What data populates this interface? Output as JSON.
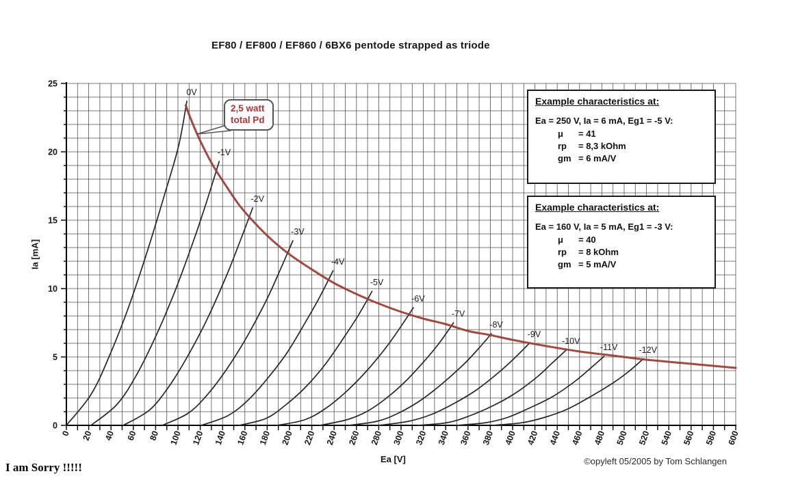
{
  "title": "EF80 / EF800 / EF860 / 6BX6 pentode strapped as triode",
  "footer": {
    "sorry_note": "I am Sorry !!!!!",
    "credit": "©opyleft 05/2005 by Tom Schlangen"
  },
  "callout": {
    "line1": "2,5 watt",
    "line2": "total Pd"
  },
  "example_boxes": [
    {
      "heading": "Example characteristics at:",
      "condition": "Ea = 250 V, Ia = 6 mA, Eg1 = -5 V:",
      "rows": [
        {
          "label": "μ",
          "value": "= 41"
        },
        {
          "label": "rp",
          "value": "= 8,3 kOhm"
        },
        {
          "label": "gm",
          "value": "= 6 mA/V"
        }
      ]
    },
    {
      "heading": "Example characteristics at:",
      "condition": "Ea = 160 V, Ia = 5 mA, Eg1 = -3 V:",
      "rows": [
        {
          "label": "μ",
          "value": "= 40"
        },
        {
          "label": "rp",
          "value": "= 8 kOhm"
        },
        {
          "label": "gm",
          "value": "= 5 mA/V"
        }
      ]
    }
  ],
  "chart_data": {
    "type": "line",
    "title": "EF80 / EF800 / EF860 / 6BX6 pentode strapped as triode",
    "xlabel": "Ea [V]",
    "ylabel": "Ia [mA]",
    "xlim": [
      0,
      600
    ],
    "ylim": [
      0,
      25
    ],
    "x_tick_step": 20,
    "x_grid_step": 10,
    "y_tick_step": 5,
    "y_grid_step": 1,
    "grid": true,
    "grid_color": "#3f3f3f",
    "curve_color": "#262626",
    "pd_color": "#9b3a32",
    "callout_text_color": "#b03434",
    "legend_position": "none",
    "series": [
      {
        "name": "0V",
        "vg": 0,
        "points": [
          [
            0,
            0
          ],
          [
            22.4,
            2.3
          ],
          [
            39.2,
            5.2
          ],
          [
            56,
            8.7
          ],
          [
            72.8,
            12.8
          ],
          [
            89.6,
            17.3
          ],
          [
            100.8,
            20.5
          ],
          [
            108,
            23.7
          ]
        ]
      },
      {
        "name": "-1V",
        "vg": -1,
        "points": [
          [
            22,
            0
          ],
          [
            45,
            1.5
          ],
          [
            62.3,
            3.6
          ],
          [
            79.5,
            6.4
          ],
          [
            96.8,
            9.7
          ],
          [
            114,
            13.5
          ],
          [
            125.5,
            16.3
          ],
          [
            137,
            19.3
          ]
        ]
      },
      {
        "name": "-2V",
        "vg": -2,
        "points": [
          [
            51,
            0
          ],
          [
            74.2,
            1.1
          ],
          [
            91.6,
            2.8
          ],
          [
            109,
            5.1
          ],
          [
            126.4,
            7.8
          ],
          [
            143.8,
            11.0
          ],
          [
            155.4,
            13.4
          ],
          [
            167,
            15.9
          ]
        ]
      },
      {
        "name": "-3V",
        "vg": -3,
        "points": [
          [
            86,
            0
          ],
          [
            109.4,
            0.9
          ],
          [
            127,
            2.3
          ],
          [
            144.5,
            4.2
          ],
          [
            162,
            6.5
          ],
          [
            179.6,
            9.2
          ],
          [
            191.3,
            11.3
          ],
          [
            203,
            13.5
          ]
        ]
      },
      {
        "name": "-4V",
        "vg": -4,
        "points": [
          [
            121,
            0
          ],
          [
            144.6,
            0.7
          ],
          [
            162.3,
            1.8
          ],
          [
            180,
            3.4
          ],
          [
            197.7,
            5.3
          ],
          [
            215.4,
            7.7
          ],
          [
            227.2,
            9.4
          ],
          [
            239,
            11.3
          ]
        ]
      },
      {
        "name": "-5V",
        "vg": -5,
        "points": [
          [
            155,
            0
          ],
          [
            178.8,
            0.5
          ],
          [
            196.7,
            1.5
          ],
          [
            214.5,
            2.8
          ],
          [
            232.4,
            4.5
          ],
          [
            250.2,
            6.6
          ],
          [
            262.1,
            8.1
          ],
          [
            274,
            9.8
          ]
        ]
      },
      {
        "name": "-6V",
        "vg": -6,
        "points": [
          [
            189,
            0
          ],
          [
            213.4,
            0.4
          ],
          [
            231.7,
            1.2
          ],
          [
            250,
            2.4
          ],
          [
            268.3,
            3.9
          ],
          [
            286.6,
            5.7
          ],
          [
            298.8,
            7.1
          ],
          [
            311,
            8.6
          ]
        ]
      },
      {
        "name": "-7V",
        "vg": -7,
        "points": [
          [
            227,
            0
          ],
          [
            251,
            0.4
          ],
          [
            269,
            1.0
          ],
          [
            287,
            2.0
          ],
          [
            305,
            3.3
          ],
          [
            323,
            4.9
          ],
          [
            335,
            6.1
          ],
          [
            347,
            7.5
          ]
        ]
      },
      {
        "name": "-8V",
        "vg": -8,
        "points": [
          [
            253,
            0
          ],
          [
            278.6,
            0.3
          ],
          [
            297.8,
            0.9
          ],
          [
            317,
            1.8
          ],
          [
            336.2,
            3.0
          ],
          [
            355.4,
            4.4
          ],
          [
            368.2,
            5.5
          ],
          [
            381,
            6.7
          ]
        ]
      },
      {
        "name": "-9V",
        "vg": -9,
        "points": [
          [
            280,
            0
          ],
          [
            307,
            0.3
          ],
          [
            327.3,
            0.8
          ],
          [
            347.5,
            1.6
          ],
          [
            367.8,
            2.6
          ],
          [
            388,
            3.9
          ],
          [
            401.5,
            4.9
          ],
          [
            415,
            6.0
          ]
        ]
      },
      {
        "name": "-10V",
        "vg": -10,
        "points": [
          [
            315,
            0
          ],
          [
            341.6,
            0.2
          ],
          [
            361.6,
            0.7
          ],
          [
            381.5,
            1.4
          ],
          [
            401.5,
            2.3
          ],
          [
            421.4,
            3.5
          ],
          [
            434.7,
            4.5
          ],
          [
            448,
            5.5
          ]
        ]
      },
      {
        "name": "-11V",
        "vg": -11,
        "points": [
          [
            350,
            0
          ],
          [
            376.4,
            0.2
          ],
          [
            396.2,
            0.6
          ],
          [
            416,
            1.3
          ],
          [
            435.8,
            2.1
          ],
          [
            455.6,
            3.2
          ],
          [
            468.8,
            4.1
          ],
          [
            482,
            5.05
          ]
        ]
      },
      {
        "name": "-12V",
        "vg": -12,
        "points": [
          [
            382,
            0
          ],
          [
            409,
            0.2
          ],
          [
            429.3,
            0.6
          ],
          [
            449.5,
            1.2
          ],
          [
            469.8,
            2.1
          ],
          [
            490,
            3.1
          ],
          [
            503.5,
            3.9
          ],
          [
            517,
            4.85
          ]
        ]
      }
    ],
    "pd_curve": {
      "name": "2,5 watt total Pd",
      "watts": 2.5,
      "points": [
        [
          107,
          23.4
        ],
        [
          112,
          22.3
        ],
        [
          120,
          20.8
        ],
        [
          130,
          19.2
        ],
        [
          140,
          17.9
        ],
        [
          155,
          16.1
        ],
        [
          170,
          14.7
        ],
        [
          185,
          13.5
        ],
        [
          200,
          12.5
        ],
        [
          220,
          11.4
        ],
        [
          240,
          10.4
        ],
        [
          260,
          9.6
        ],
        [
          280,
          8.9
        ],
        [
          300,
          8.3
        ],
        [
          320,
          7.8
        ],
        [
          340,
          7.4
        ],
        [
          360,
          6.9
        ],
        [
          380,
          6.6
        ],
        [
          400,
          6.25
        ],
        [
          430,
          5.8
        ],
        [
          460,
          5.4
        ],
        [
          490,
          5.1
        ],
        [
          520,
          4.8
        ],
        [
          560,
          4.5
        ],
        [
          600,
          4.2
        ]
      ]
    }
  }
}
